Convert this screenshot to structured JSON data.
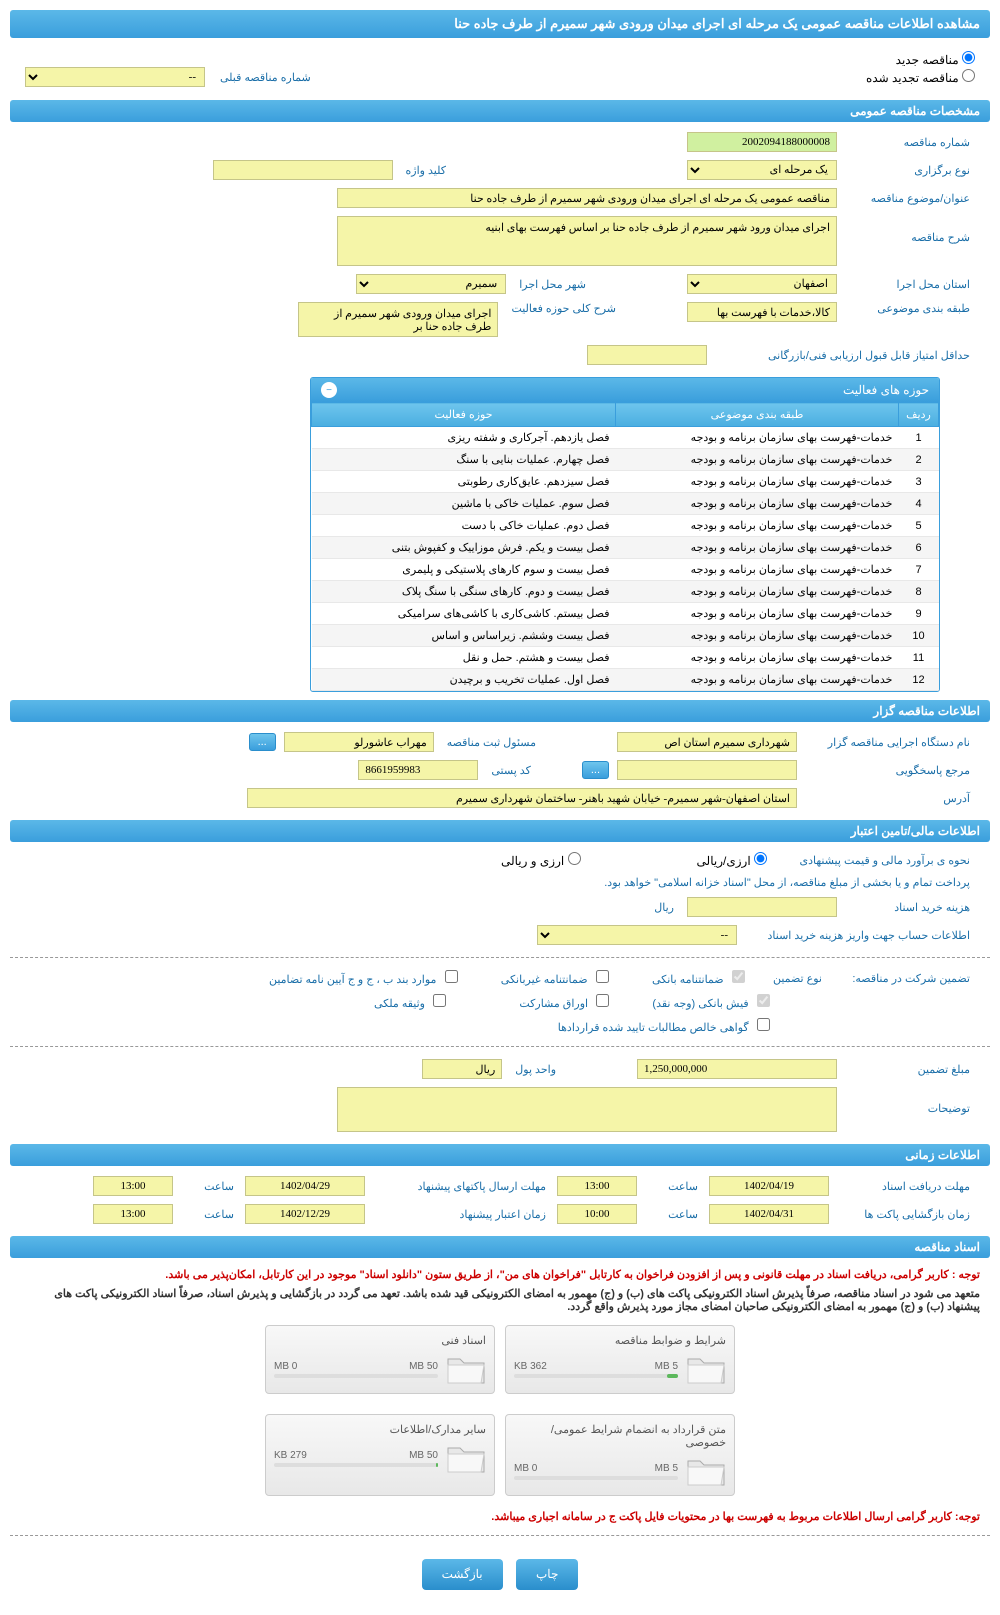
{
  "page_title": "مشاهده اطلاعات مناقصه عمومی یک مرحله ای اجرای میدان ورودی شهر سمیرم از طرف جاده حنا",
  "radio_options": {
    "new_tender": "مناقصه جدید",
    "renewed_tender": "مناقصه تجدید شده",
    "prev_number_label": "شماره مناقصه قبلی"
  },
  "sections": {
    "general": "مشخصات مناقصه عمومی",
    "holder": "اطلاعات مناقصه گزار",
    "financial": "اطلاعات مالی/تامین اعتبار",
    "timing": "اطلاعات زمانی",
    "documents": "اسناد مناقصه"
  },
  "general": {
    "tender_number_label": "شماره مناقصه",
    "tender_number": "2002094188000008",
    "type_label": "نوع برگزاری",
    "type": "یک مرحله ای",
    "keyword_label": "کلید واژه",
    "keyword": "",
    "subject_label": "عنوان/موضوع مناقصه",
    "subject": "مناقصه عمومی یک مرحله ای اجرای میدان ورودی شهر سمیرم از طرف جاده حنا",
    "description_label": "شرح مناقصه",
    "description": "اجرای میدان ورود شهر سمیرم از طرف جاده حنا بر اساس فهرست بهای ابنیه",
    "province_label": "استان محل اجرا",
    "province": "اصفهان",
    "city_label": "شهر محل اجرا",
    "city": "سمیرم",
    "category_label": "طبقه بندی موضوعی",
    "category": "کالا،خدمات با فهرست بها",
    "activity_scope_label": "شرح کلی حوزه فعالیت",
    "activity_scope": "اجرای میدان ورودی شهر سمیرم از طرف جاده حنا بر",
    "min_score_label": "حداقل امتیاز قابل قبول ارزیابی فنی/بازرگانی",
    "min_score": ""
  },
  "activity_table": {
    "title": "حوزه های فعالیت",
    "col_index": "ردیف",
    "col_category": "طبقه بندی موضوعی",
    "col_activity": "حوزه فعالیت",
    "rows": [
      {
        "n": "1",
        "cat": "خدمات-فهرست بهای سازمان برنامه و بودجه",
        "act": "فصل یازدهم. آجرکاری و شفته ریزی"
      },
      {
        "n": "2",
        "cat": "خدمات-فهرست بهای سازمان برنامه و بودجه",
        "act": "فصل چهارم. عملیات بنایی با سنگ"
      },
      {
        "n": "3",
        "cat": "خدمات-فهرست بهای سازمان برنامه و بودجه",
        "act": "فصل سیزدهم. عایق‌کاری رطوبتی"
      },
      {
        "n": "4",
        "cat": "خدمات-فهرست بهای سازمان برنامه و بودجه",
        "act": "فصل سوم. عملیات خاکی با ماشین"
      },
      {
        "n": "5",
        "cat": "خدمات-فهرست بهای سازمان برنامه و بودجه",
        "act": "فصل دوم. عملیات خاکی با دست"
      },
      {
        "n": "6",
        "cat": "خدمات-فهرست بهای سازمان برنامه و بودجه",
        "act": "فصل بیست و یکم. فرش موزاییک و کفپوش بتنی"
      },
      {
        "n": "7",
        "cat": "خدمات-فهرست بهای سازمان برنامه و بودجه",
        "act": "فصل بیست و سوم کارهای پلاستیکی و پلیمری"
      },
      {
        "n": "8",
        "cat": "خدمات-فهرست بهای سازمان برنامه و بودجه",
        "act": "فصل بیست و دوم. کارهای سنگی با سنگ پلاک"
      },
      {
        "n": "9",
        "cat": "خدمات-فهرست بهای سازمان برنامه و بودجه",
        "act": "فصل بیستم. کاشی‌کاری با کاشی‌های سرامیکی"
      },
      {
        "n": "10",
        "cat": "خدمات-فهرست بهای سازمان برنامه و بودجه",
        "act": "فصل بیست وششم. زیراساس و اساس"
      },
      {
        "n": "11",
        "cat": "خدمات-فهرست بهای سازمان برنامه و بودجه",
        "act": "فصل بیست و هشتم. حمل و نقل"
      },
      {
        "n": "12",
        "cat": "خدمات-فهرست بهای سازمان برنامه و بودجه",
        "act": "فصل اول. عملیات تخریب و برچیدن"
      }
    ]
  },
  "holder": {
    "org_label": "نام دستگاه اجرایی مناقصه گزار",
    "org": "شهرداری سمیرم استان اص",
    "reg_person_label": "مسئول ثبت مناقصه",
    "reg_person": "مهراب عاشورلو",
    "contact_label": "مرجع پاسخگویی",
    "contact": "",
    "postal_label": "کد پستی",
    "postal": "8661959983",
    "address_label": "آدرس",
    "address": "استان اصفهان-شهر سمیرم- خیابان شهید باهنر- ساختمان شهرداری سمیرم",
    "more_btn": "..."
  },
  "financial": {
    "estimate_label": "نحوه ی برآورد مالی و قیمت پیشنهادی",
    "opt_rial_curr": "ارزی/ریالی",
    "opt_rial": "ارزی و ریالی",
    "payment_note": "پرداخت تمام و یا بخشی از مبلغ مناقصه، از محل \"اسناد خزانه اسلامی\" خواهد بود.",
    "doc_fee_label": "هزینه خرید اسناد",
    "doc_fee": "",
    "rial_unit": "ریال",
    "account_label": "اطلاعات حساب جهت واریز هزینه خرید اسناد",
    "account_placeholder": "--",
    "guarantee_label": "تضمین شرکت در مناقصه:",
    "guarantee_type_label": "نوع تضمین",
    "chk_bank_guarantee": "ضمانتنامه بانکی",
    "chk_nonbank_guarantee": "ضمانتنامه غیربانکی",
    "chk_items_bcj": "موارد بند ب ، ج و ج آیین نامه تضامین",
    "chk_bank_receipt": "فیش بانکی (وجه نقد)",
    "chk_partnership": "اوراق مشارکت",
    "chk_property": "وثیقه ملکی",
    "chk_net_claims": "گواهی خالص مطالبات تایید شده قراردادها",
    "guarantee_amount_label": "مبلغ تضمین",
    "guarantee_amount": "1,250,000,000",
    "currency_label": "واحد پول",
    "currency": "ریال",
    "notes_label": "توضیحات",
    "notes": ""
  },
  "timing": {
    "receive_deadline_label": "مهلت دریافت اسناد",
    "receive_date": "1402/04/19",
    "receive_time": "13:00",
    "send_deadline_label": "مهلت ارسال پاکتهای پیشنهاد",
    "send_date": "1402/04/29",
    "send_time": "13:00",
    "open_label": "زمان بازگشایی پاکت ها",
    "open_date": "1402/04/31",
    "open_time": "10:00",
    "validity_label": "زمان اعتبار پیشنهاد",
    "validity_date": "1402/12/29",
    "validity_time": "13:00",
    "time_label": "ساعت"
  },
  "documents": {
    "warning1": "توجه : کاربر گرامی، دریافت اسناد در مهلت قانونی و پس از افزودن فراخوان به کارتابل \"فراخوان های من\"، از طریق ستون \"دانلود اسناد\" موجود در این کارتابل، امکان‌پذیر می باشد.",
    "warning2": "متعهد می شود در اسناد مناقصه، صرفاً پذیرش اسناد الکترونیکی پاکت های (ب) و (ج) مهمور به امضای الکترونیکی قید شده باشد. تعهد می گردد در بازگشایی و پذیرش اسناد، صرفاً اسناد الکترونیکی پاکت های پیشنهاد (ب) و (ج) مهمور به امضای الکترونیکی صاحبان امضای مجاز مورد پذیرش واقع گردد.",
    "warning3": "توجه: کاربر گرامی ارسال اطلاعات مربوط به فهرست بها در محتویات فایل پاکت ج در سامانه اجباری میباشد.",
    "boxes": [
      {
        "title": "شرایط و ضوابط مناقصه",
        "used": "362 KB",
        "total": "5 MB",
        "pct": 7
      },
      {
        "title": "اسناد فنی",
        "used": "0 MB",
        "total": "50 MB",
        "pct": 0
      },
      {
        "title": "متن قرارداد به انضمام شرایط عمومی/خصوصی",
        "used": "0 MB",
        "total": "5 MB",
        "pct": 0
      },
      {
        "title": "سایر مدارک/اطلاعات",
        "used": "279 KB",
        "total": "50 MB",
        "pct": 1
      }
    ]
  },
  "buttons": {
    "print": "چاپ",
    "back": "بازگشت"
  },
  "colors": {
    "header_bg": "#3a9edc",
    "input_bg": "#f5f5a8",
    "label_color": "#1a6ea8",
    "warning_color": "#c00"
  }
}
